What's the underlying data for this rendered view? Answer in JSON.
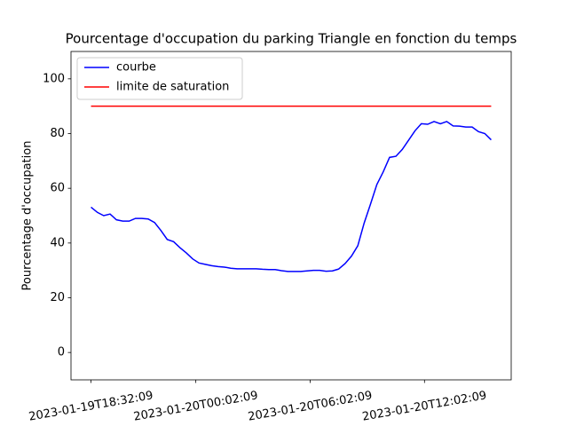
{
  "chart_data": {
    "type": "line",
    "title": "Pourcentage d'occupation du parking Triangle en fonction du temps",
    "y_label": "Pourcentage d'occupation",
    "x": [
      "2023-01-19T18:32:09",
      "2023-01-19T18:52:09",
      "2023-01-19T19:12:09",
      "2023-01-19T19:32:09",
      "2023-01-19T19:52:09",
      "2023-01-19T20:12:09",
      "2023-01-19T20:32:09",
      "2023-01-19T20:52:09",
      "2023-01-19T21:12:09",
      "2023-01-19T21:32:09",
      "2023-01-19T21:52:09",
      "2023-01-19T22:12:09",
      "2023-01-19T22:32:09",
      "2023-01-19T22:52:09",
      "2023-01-19T23:12:09",
      "2023-01-19T23:32:09",
      "2023-01-19T23:52:09",
      "2023-01-20T00:12:09",
      "2023-01-20T00:32:09",
      "2023-01-20T00:52:09",
      "2023-01-20T01:12:09",
      "2023-01-20T01:32:09",
      "2023-01-20T01:52:09",
      "2023-01-20T02:12:09",
      "2023-01-20T02:32:09",
      "2023-01-20T02:52:09",
      "2023-01-20T03:12:09",
      "2023-01-20T03:32:09",
      "2023-01-20T03:52:09",
      "2023-01-20T04:12:09",
      "2023-01-20T04:32:09",
      "2023-01-20T04:52:09",
      "2023-01-20T05:12:09",
      "2023-01-20T05:32:09",
      "2023-01-20T05:52:09",
      "2023-01-20T06:12:09",
      "2023-01-20T06:32:09",
      "2023-01-20T06:52:09",
      "2023-01-20T07:12:09",
      "2023-01-20T07:32:09",
      "2023-01-20T07:52:09",
      "2023-01-20T08:12:09",
      "2023-01-20T08:32:09",
      "2023-01-20T08:52:09",
      "2023-01-20T09:12:09",
      "2023-01-20T09:32:09",
      "2023-01-20T09:52:09",
      "2023-01-20T10:12:09",
      "2023-01-20T10:32:09",
      "2023-01-20T10:52:09",
      "2023-01-20T11:12:09",
      "2023-01-20T11:32:09",
      "2023-01-20T11:52:09",
      "2023-01-20T12:12:09",
      "2023-01-20T12:32:09",
      "2023-01-20T12:52:09",
      "2023-01-20T13:12:09",
      "2023-01-20T13:32:09",
      "2023-01-20T13:52:09",
      "2023-01-20T14:12:09",
      "2023-01-20T14:32:09",
      "2023-01-20T14:52:09",
      "2023-01-20T15:12:09",
      "2023-01-20T15:32:09"
    ],
    "series": [
      {
        "name": "courbe",
        "color": "#0000ff",
        "values": [
          53.1,
          51.2,
          50,
          50.6,
          48.5,
          48,
          48,
          49,
          49,
          48.8,
          47.5,
          44.6,
          41.3,
          40.5,
          38.3,
          36.4,
          34.2,
          32.7,
          32.2,
          31.7,
          31.4,
          31.2,
          30.8,
          30.6,
          30.6,
          30.6,
          30.6,
          30.4,
          30.3,
          30.3,
          29.9,
          29.6,
          29.6,
          29.6,
          29.8,
          30,
          30,
          29.7,
          29.8,
          30.5,
          32.5,
          35.2,
          39,
          47.3,
          54.2,
          61.4,
          66,
          71.3,
          71.7,
          74.2,
          77.6,
          81,
          83.6,
          83.4,
          84.4,
          83.6,
          84.4,
          82.8,
          82.7,
          82.4,
          82.4,
          80.7,
          80,
          77.7
        ]
      },
      {
        "name": "limite de saturation",
        "color": "#ff0000",
        "values": [
          90,
          90,
          90,
          90,
          90,
          90,
          90,
          90,
          90,
          90,
          90,
          90,
          90,
          90,
          90,
          90,
          90,
          90,
          90,
          90,
          90,
          90,
          90,
          90,
          90,
          90,
          90,
          90,
          90,
          90,
          90,
          90,
          90,
          90,
          90,
          90,
          90,
          90,
          90,
          90,
          90,
          90,
          90,
          90,
          90,
          90,
          90,
          90,
          90,
          90,
          90,
          90,
          90,
          90,
          90,
          90,
          90,
          90,
          90,
          90,
          90,
          90,
          90,
          90
        ]
      }
    ],
    "xlim": [
      "2023-01-19T17:29:09",
      "2023-01-20T16:35:09"
    ],
    "xticks": [
      "2023-01-19T18:32:09",
      "2023-01-20T00:02:09",
      "2023-01-20T06:02:09",
      "2023-01-20T12:02:09"
    ],
    "ylim": [
      -10,
      110
    ],
    "yticks": [
      0,
      20,
      40,
      60,
      80,
      100
    ],
    "legend": "upper left"
  }
}
